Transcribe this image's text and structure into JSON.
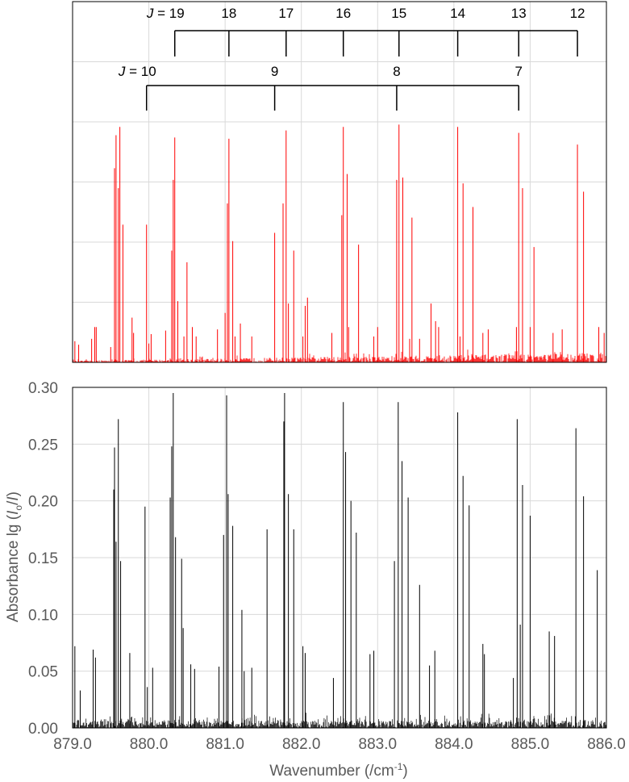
{
  "chart_data": [
    {
      "type": "line",
      "description_role": "simulated-spectrum",
      "series": [
        {
          "color": "#ff0000",
          "peaks": [
            [
              879.03,
              0.018
            ],
            [
              879.08,
              0.015
            ],
            [
              879.25,
              0.02
            ],
            [
              879.29,
              0.03
            ],
            [
              879.31,
              0.03
            ],
            [
              879.5,
              0.013
            ],
            [
              879.55,
              0.165
            ],
            [
              879.57,
              0.193
            ],
            [
              879.6,
              0.148
            ],
            [
              879.62,
              0.2
            ],
            [
              879.66,
              0.117
            ],
            [
              879.78,
              0.038
            ],
            [
              879.8,
              0.025
            ],
            [
              880.03,
              0.024
            ],
            [
              879.97,
              0.117
            ],
            [
              880.0,
              0.016
            ],
            [
              880.22,
              0.027
            ],
            [
              880.3,
              0.095
            ],
            [
              880.32,
              0.155
            ],
            [
              880.34,
              0.191
            ],
            [
              880.38,
              0.052
            ],
            [
              880.46,
              0.022
            ],
            [
              880.5,
              0.085
            ],
            [
              880.57,
              0.03
            ],
            [
              880.62,
              0.022
            ],
            [
              880.9,
              0.028
            ],
            [
              881.0,
              0.042
            ],
            [
              881.03,
              0.135
            ],
            [
              881.05,
              0.19
            ],
            [
              881.1,
              0.103
            ],
            [
              881.13,
              0.022
            ],
            [
              881.2,
              0.033
            ],
            [
              881.35,
              0.022
            ],
            [
              881.65,
              0.11
            ],
            [
              881.76,
              0.135
            ],
            [
              881.8,
              0.197
            ],
            [
              881.83,
              0.05
            ],
            [
              881.9,
              0.095
            ],
            [
              882.02,
              0.022
            ],
            [
              882.05,
              0.048
            ],
            [
              882.08,
              0.055
            ],
            [
              882.4,
              0.025
            ],
            [
              882.53,
              0.125
            ],
            [
              882.55,
              0.2
            ],
            [
              882.6,
              0.16
            ],
            [
              882.62,
              0.03
            ],
            [
              882.75,
              0.1
            ],
            [
              882.95,
              0.022
            ],
            [
              883.0,
              0.03
            ],
            [
              883.25,
              0.155
            ],
            [
              883.28,
              0.202
            ],
            [
              883.33,
              0.157
            ],
            [
              883.42,
              0.02
            ],
            [
              883.45,
              0.123
            ],
            [
              883.55,
              0.02
            ],
            [
              883.7,
              0.05
            ],
            [
              883.76,
              0.035
            ],
            [
              883.8,
              0.03
            ],
            [
              884.05,
              0.2
            ],
            [
              884.08,
              0.022
            ],
            [
              884.12,
              0.152
            ],
            [
              884.25,
              0.132
            ],
            [
              884.38,
              0.025
            ],
            [
              884.45,
              0.028
            ],
            [
              884.82,
              0.03
            ],
            [
              884.85,
              0.195
            ],
            [
              884.9,
              0.148
            ],
            [
              885.0,
              0.03
            ],
            [
              885.05,
              0.098
            ],
            [
              885.3,
              0.025
            ],
            [
              885.42,
              0.028
            ],
            [
              885.62,
              0.185
            ],
            [
              885.7,
              0.145
            ],
            [
              885.9,
              0.03
            ],
            [
              885.97,
              0.025
            ]
          ]
        }
      ],
      "xlim": [
        879.0,
        886.0
      ],
      "assignments": {
        "upper_branch": {
          "labels": [
            "J = 19",
            "18",
            "17",
            "16",
            "15",
            "14",
            "13",
            "12"
          ],
          "x": [
            880.34,
            881.05,
            881.8,
            882.55,
            883.28,
            884.05,
            884.85,
            885.62
          ]
        },
        "lower_branch": {
          "labels": [
            "J = 10",
            "9",
            "8",
            "7"
          ],
          "x": [
            879.97,
            881.65,
            883.25,
            884.85
          ]
        }
      },
      "grid": true
    },
    {
      "type": "line",
      "description_role": "measured-spectrum",
      "xlabel": "Wavenumber (/cm⁻¹)",
      "ylabel": "Absorbance lg (I₀/I)",
      "xlim": [
        879.0,
        886.0
      ],
      "ylim": [
        0.0,
        0.3
      ],
      "xticks": [
        "879.0",
        "880.0",
        "881.0",
        "882.0",
        "883.0",
        "884.0",
        "885.0",
        "886.0"
      ],
      "yticks": [
        "0.00",
        "0.05",
        "0.10",
        "0.15",
        "0.20",
        "0.25",
        "0.30"
      ],
      "grid": true,
      "series": [
        {
          "color": "#000000",
          "peaks": [
            [
              879.03,
              0.072
            ],
            [
              879.1,
              0.033
            ],
            [
              879.27,
              0.069
            ],
            [
              879.3,
              0.062
            ],
            [
              879.54,
              0.21
            ],
            [
              879.55,
              0.247
            ],
            [
              879.57,
              0.164
            ],
            [
              879.6,
              0.272
            ],
            [
              879.63,
              0.147
            ],
            [
              879.75,
              0.066
            ],
            [
              879.95,
              0.195
            ],
            [
              879.98,
              0.036
            ],
            [
              880.05,
              0.053
            ],
            [
              880.28,
              0.203
            ],
            [
              880.3,
              0.248
            ],
            [
              880.32,
              0.295
            ],
            [
              880.35,
              0.168
            ],
            [
              880.43,
              0.149
            ],
            [
              880.45,
              0.088
            ],
            [
              880.55,
              0.056
            ],
            [
              880.6,
              0.052
            ],
            [
              880.92,
              0.054
            ],
            [
              880.98,
              0.17
            ],
            [
              881.02,
              0.293
            ],
            [
              881.04,
              0.206
            ],
            [
              881.1,
              0.178
            ],
            [
              881.22,
              0.104
            ],
            [
              881.25,
              0.05
            ],
            [
              881.35,
              0.053
            ],
            [
              881.55,
              0.175
            ],
            [
              881.77,
              0.27
            ],
            [
              881.78,
              0.295
            ],
            [
              881.83,
              0.206
            ],
            [
              881.9,
              0.175
            ],
            [
              882.02,
              0.072
            ],
            [
              882.05,
              0.066
            ],
            [
              882.42,
              0.044
            ],
            [
              882.55,
              0.287
            ],
            [
              882.58,
              0.243
            ],
            [
              882.65,
              0.2
            ],
            [
              882.72,
              0.172
            ],
            [
              882.9,
              0.065
            ],
            [
              882.95,
              0.068
            ],
            [
              883.22,
              0.147
            ],
            [
              883.27,
              0.287
            ],
            [
              883.32,
              0.235
            ],
            [
              883.4,
              0.203
            ],
            [
              883.55,
              0.126
            ],
            [
              883.68,
              0.055
            ],
            [
              883.75,
              0.068
            ],
            [
              884.05,
              0.278
            ],
            [
              884.12,
              0.222
            ],
            [
              884.2,
              0.196
            ],
            [
              884.38,
              0.074
            ],
            [
              884.4,
              0.065
            ],
            [
              884.78,
              0.044
            ],
            [
              884.83,
              0.272
            ],
            [
              884.87,
              0.091
            ],
            [
              884.9,
              0.214
            ],
            [
              885.0,
              0.187
            ],
            [
              885.25,
              0.085
            ],
            [
              885.32,
              0.081
            ],
            [
              885.6,
              0.264
            ],
            [
              885.7,
              0.204
            ],
            [
              885.88,
              0.139
            ]
          ]
        }
      ]
    }
  ]
}
